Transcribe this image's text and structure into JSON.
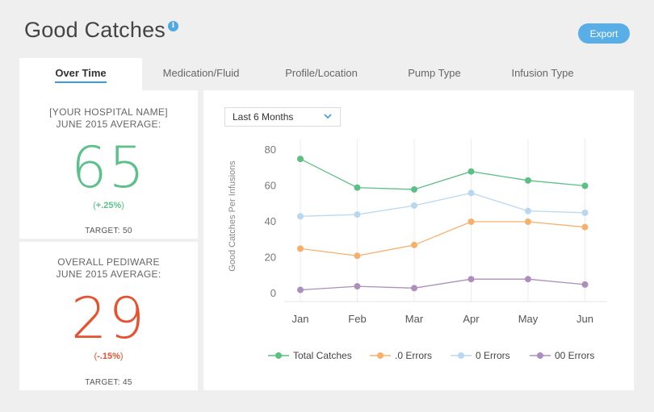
{
  "header": {
    "title": "Good Catches",
    "info_icon": "i",
    "export_label": "Export"
  },
  "tabs": [
    {
      "label": "Over Time",
      "active": true
    },
    {
      "label": "Medication/Fluid",
      "active": false
    },
    {
      "label": "Profile/Location",
      "active": false
    },
    {
      "label": "Pump Type",
      "active": false
    },
    {
      "label": "Infusion Type",
      "active": false
    }
  ],
  "stats": {
    "hospital": {
      "line1": "[YOUR HOSPITAL NAME]",
      "line2": "JUNE 2015 AVERAGE:",
      "value": "65",
      "change": "(+.25%)",
      "change_value": "+.25%",
      "target": "TARGET: 50",
      "color": "#5cc08a"
    },
    "overall": {
      "line1": "OVERALL PEDIWARE",
      "line2": "JUNE 2015 AVERAGE:",
      "value": "29",
      "change": "(-.15%)",
      "change_value": "-.15%",
      "target": "TARGET: 45",
      "color": "#e8512f"
    }
  },
  "filter": {
    "selected": "Last 6 Months",
    "icon": "chevron-down-icon"
  },
  "chart_data": {
    "type": "line",
    "categories": [
      "Jan",
      "Feb",
      "Mar",
      "Apr",
      "May",
      "Jun"
    ],
    "ylabel": "Good Catches Per Infusions",
    "ylim": [
      0,
      80
    ],
    "yticks": [
      0,
      20,
      40,
      60,
      80
    ],
    "grid": "vertical",
    "legend_position": "bottom",
    "series": [
      {
        "name": "Total Catches",
        "color": "#5cbf84",
        "values": [
          75,
          59,
          58,
          68,
          63,
          60
        ]
      },
      {
        "name": ".0 Errors",
        "color": "#f5b06c",
        "values": [
          25,
          21,
          27,
          40,
          40,
          37
        ]
      },
      {
        "name": "0 Errors",
        "color": "#b9d7ef",
        "values": [
          43,
          44,
          49,
          56,
          46,
          45
        ]
      },
      {
        "name": "00 Errors",
        "color": "#ad8fbd",
        "values": [
          2,
          4,
          3,
          8,
          8,
          5
        ]
      }
    ]
  }
}
